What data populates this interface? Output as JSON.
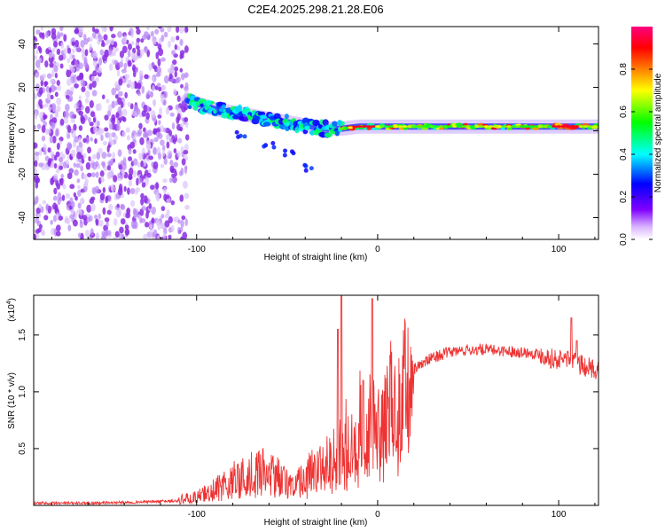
{
  "chart_data": [
    {
      "type": "heatmap",
      "title": "C2E4.2025.298.21.28.E06",
      "xlabel": "Height of straight line (km)",
      "ylabel": "Frequency (Hz)",
      "xlim": [
        -190,
        122
      ],
      "ylim": [
        -50,
        48
      ],
      "x_ticks": [
        -100,
        0,
        100
      ],
      "y_ticks": [
        -40,
        -20,
        0,
        20,
        40
      ],
      "colorbar": {
        "label": "Normalized spectral amplitude",
        "range": [
          0,
          1
        ],
        "ticks": [
          0.0,
          0.2,
          0.4,
          0.6,
          0.8
        ],
        "colors": [
          "#ffffff",
          "#8000ff",
          "#0000ff",
          "#00ffff",
          "#00ff00",
          "#ffff00",
          "#ff8000",
          "#ff0000",
          "#ff0080"
        ]
      },
      "features": [
        {
          "name": "noise region",
          "x_range": [
            -190,
            -105
          ],
          "freq_range": [
            -50,
            48
          ],
          "amplitude": 0.15
        },
        {
          "name": "signal band",
          "points": [
            [
              -105,
              14
            ],
            [
              -90,
              10
            ],
            [
              -70,
              7
            ],
            [
              -50,
              4
            ],
            [
              -30,
              1
            ],
            [
              -20,
              1
            ],
            [
              -10,
              2
            ],
            [
              0,
              2
            ],
            [
              20,
              2
            ],
            [
              50,
              2
            ],
            [
              80,
              2
            ],
            [
              100,
              2
            ],
            [
              122,
              2
            ]
          ],
          "amplitude_range": [
            0.4,
            0.95
          ]
        },
        {
          "name": "low-frequency branch",
          "points": [
            [
              -75,
              -2
            ],
            [
              -60,
              -6
            ],
            [
              -50,
              -10
            ],
            [
              -40,
              -17
            ]
          ],
          "amplitude": 0.2
        }
      ]
    },
    {
      "type": "line",
      "xlabel": "Height of straight line (km)",
      "ylabel": "SNR (10 * v/v)",
      "scale_label": "(x10",
      "scale_exponent": "4",
      "xlim": [
        -190,
        122
      ],
      "ylim": [
        0,
        1.85
      ],
      "x_ticks": [
        -100,
        0,
        100
      ],
      "y_ticks": [
        0.5,
        1.0,
        1.5
      ],
      "y_tick_labels": [
        "0.5",
        "1.0",
        "1.5"
      ],
      "series": [
        {
          "name": "SNR",
          "color": "#ee3333",
          "x": [
            -190,
            -160,
            -130,
            -110,
            -100,
            -90,
            -80,
            -70,
            -60,
            -50,
            -45,
            -40,
            -35,
            -30,
            -25,
            -20,
            -18,
            -15,
            -10,
            -5,
            0,
            5,
            10,
            15,
            20,
            30,
            40,
            50,
            60,
            70,
            80,
            90,
            95,
            100,
            105,
            110,
            115,
            120
          ],
          "y": [
            0.02,
            0.02,
            0.03,
            0.04,
            0.08,
            0.15,
            0.25,
            0.3,
            0.32,
            0.22,
            0.2,
            0.25,
            0.35,
            0.4,
            0.45,
            0.55,
            0.6,
            0.55,
            0.75,
            0.8,
            0.7,
            0.85,
            1.0,
            1.1,
            1.2,
            1.3,
            1.35,
            1.37,
            1.37,
            1.36,
            1.35,
            1.33,
            1.3,
            1.28,
            1.3,
            1.25,
            1.22,
            1.2
          ]
        }
      ],
      "spikes": [
        {
          "x": -20,
          "y": 1.85
        },
        {
          "x": -22,
          "y": 1.55
        },
        {
          "x": -3,
          "y": 1.82
        },
        {
          "x": -8,
          "y": 1.1
        },
        {
          "x": 107,
          "y": 1.65
        },
        {
          "x": 110,
          "y": 1.45
        }
      ]
    }
  ]
}
